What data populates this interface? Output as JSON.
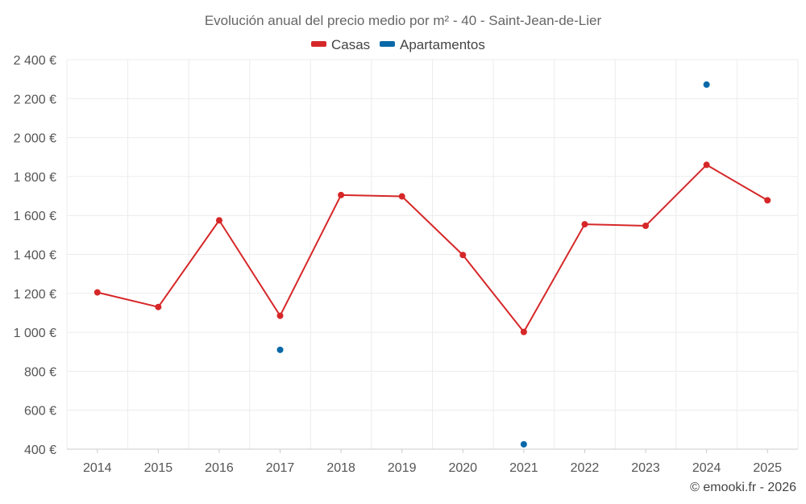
{
  "chart_data": {
    "type": "line",
    "title": "Evolución anual del precio medio por m² - 40 - Saint-Jean-de-Lier",
    "categories": [
      "2014",
      "2015",
      "2016",
      "2017",
      "2018",
      "2019",
      "2020",
      "2021",
      "2022",
      "2023",
      "2024",
      "2025"
    ],
    "y_ticks": [
      400,
      600,
      800,
      1000,
      1200,
      1400,
      1600,
      1800,
      2000,
      2200,
      2400
    ],
    "y_tick_labels": [
      "400 €",
      "600 €",
      "800 €",
      "1 000 €",
      "1 200 €",
      "1 400 €",
      "1 600 €",
      "1 800 €",
      "2 000 €",
      "2 200 €",
      "2 400 €"
    ],
    "ylim": [
      400,
      2400
    ],
    "grid": true,
    "legend_position": "top-center",
    "series": [
      {
        "name": "Casas",
        "color": "#d62728",
        "values": [
          1205,
          1130,
          1575,
          1085,
          1705,
          1698,
          1397,
          1002,
          1555,
          1547,
          1860,
          1678
        ]
      },
      {
        "name": "Apartamentos",
        "color": "#0868a8",
        "values": [
          null,
          null,
          null,
          910,
          null,
          null,
          null,
          425,
          null,
          null,
          2272,
          null
        ]
      }
    ]
  },
  "footer": {
    "credit": "© emooki.fr - 2026"
  }
}
